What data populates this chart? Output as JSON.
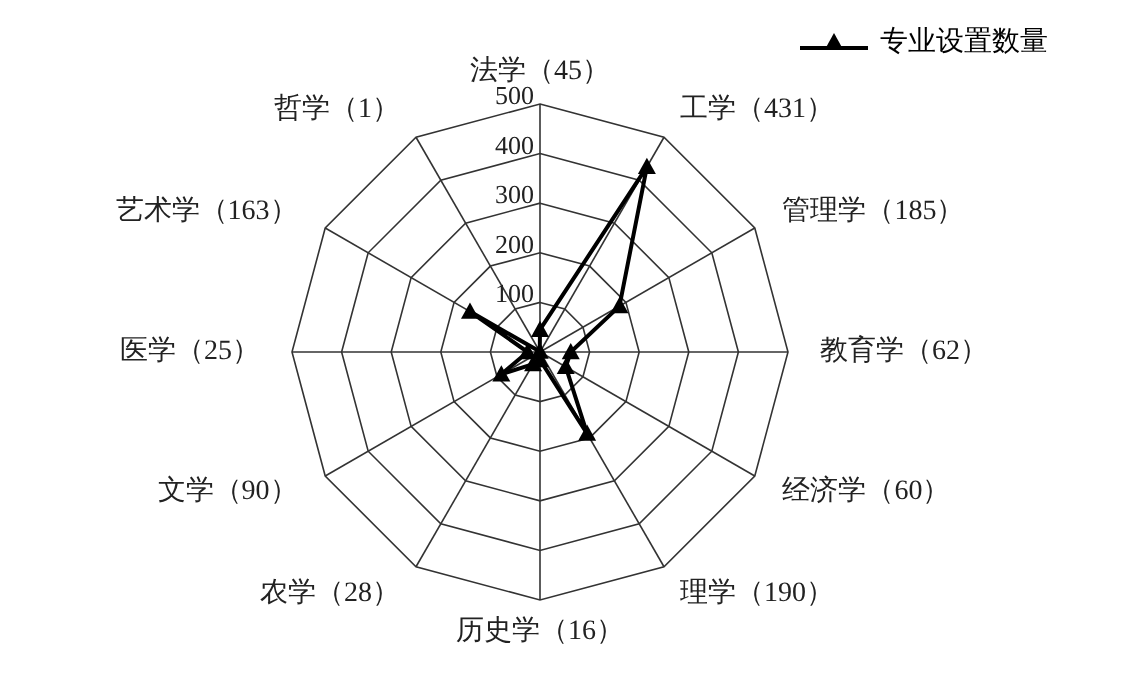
{
  "chart_data": {
    "type": "radar",
    "categories": [
      "法学（45）",
      "工学（431）",
      "管理学（185）",
      "教育学（62）",
      "经济学（60）",
      "理学（190）",
      "历史学（16）",
      "农学（28）",
      "文学（90）",
      "医学（25）",
      "艺术学（163）",
      "哲学（1）"
    ],
    "series": [
      {
        "name": "专业设置数量",
        "color": "#000000",
        "values": [
          45,
          431,
          185,
          62,
          60,
          190,
          16,
          28,
          90,
          25,
          163,
          1
        ]
      }
    ],
    "ylim": [
      0,
      500
    ],
    "yticks": [
      100,
      200,
      300,
      400,
      500
    ],
    "grid": true,
    "legend": "top right",
    "marker": "triangle",
    "line_style": "solid"
  }
}
